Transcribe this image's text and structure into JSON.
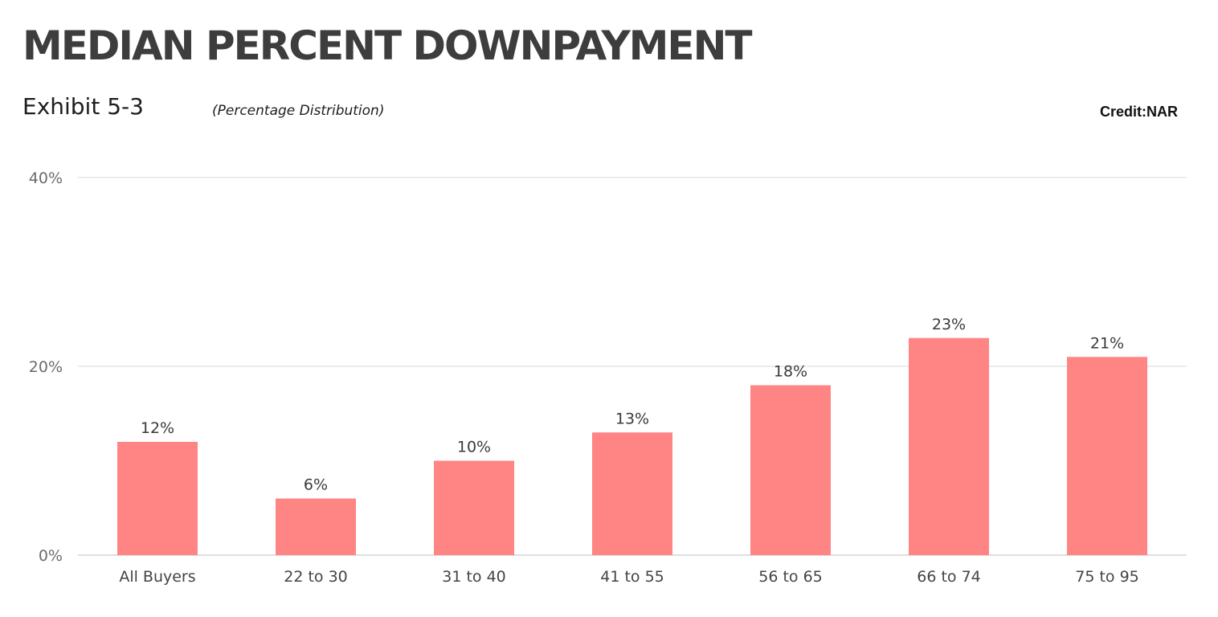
{
  "header": {
    "title": "MEDIAN PERCENT DOWNPAYMENT",
    "exhibit": "Exhibit 5-3",
    "subtitle": "(Percentage Distribution)",
    "credit": "Credit:NAR"
  },
  "colors": {
    "bar": "#ff8585",
    "grid": "#d9d9d9",
    "text": "#3a3a3a"
  },
  "chart_data": {
    "type": "bar",
    "title": "MEDIAN PERCENT DOWNPAYMENT",
    "subtitle": "(Percentage Distribution)",
    "xlabel": "",
    "ylabel": "",
    "categories": [
      "All Buyers",
      "22 to 30",
      "31 to 40",
      "41 to 55",
      "56 to 65",
      "66 to 74",
      "75 to 95"
    ],
    "values": [
      12,
      6,
      10,
      13,
      18,
      23,
      21
    ],
    "data_labels": [
      "12%",
      "6%",
      "10%",
      "13%",
      "18%",
      "23%",
      "21%"
    ],
    "ylim": [
      0,
      40
    ],
    "yticks": [
      0,
      20,
      40
    ],
    "ytick_labels": [
      "0%",
      "20%",
      "40%"
    ],
    "grid": true,
    "legend": "none"
  }
}
